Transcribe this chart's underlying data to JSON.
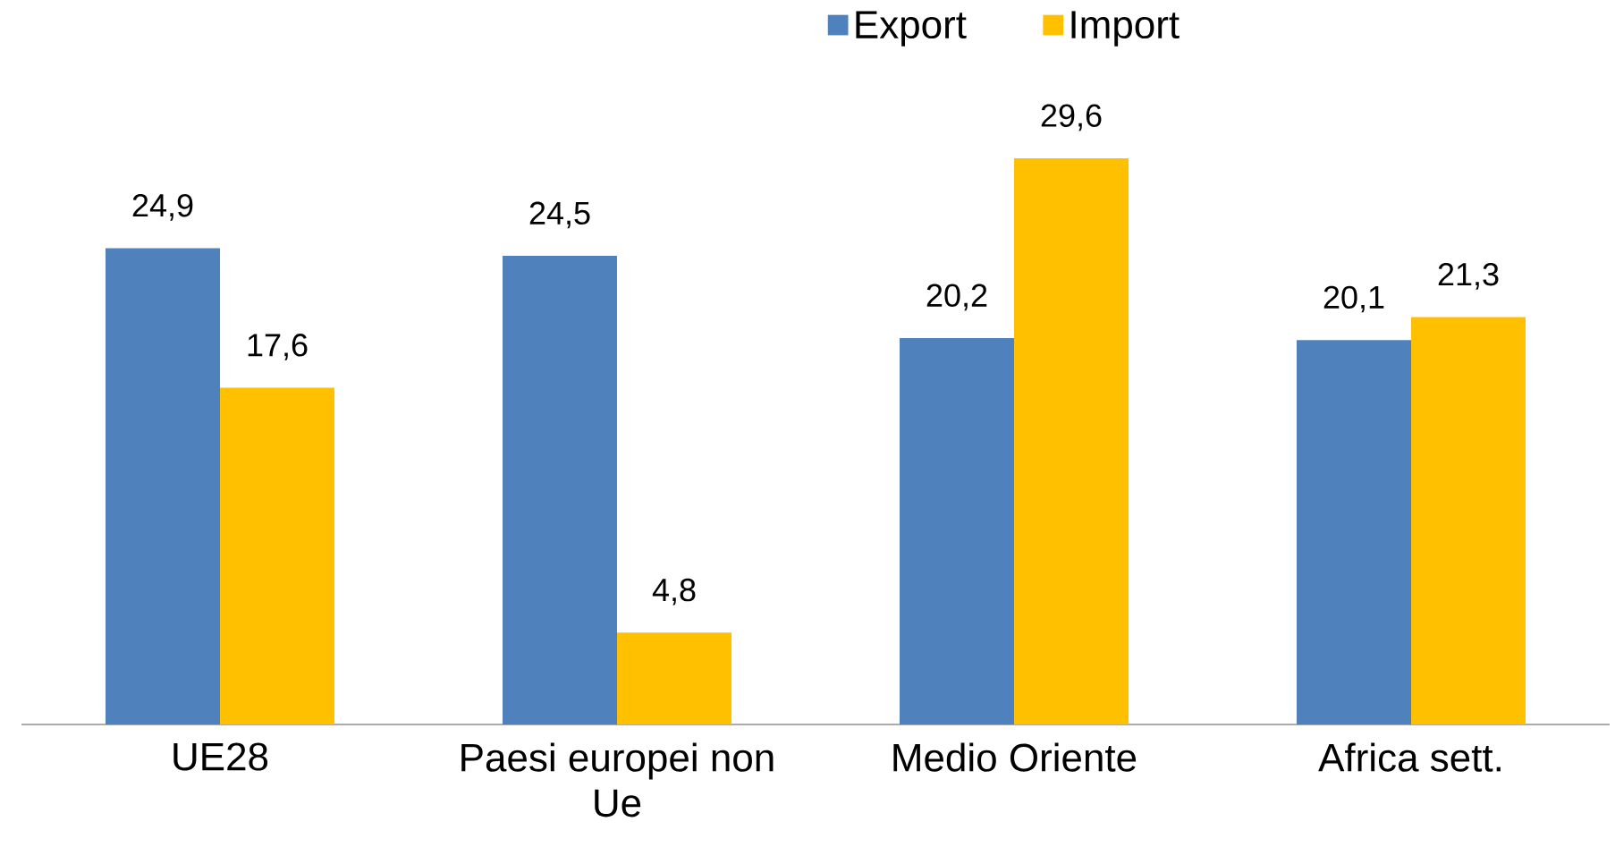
{
  "chart_data": {
    "type": "bar",
    "categories": [
      "UE28",
      "Paesi europei non Ue",
      "Medio Oriente",
      "Africa sett."
    ],
    "series": [
      {
        "name": "Export",
        "color": "#4f81bd",
        "values": [
          24.9,
          24.5,
          20.2,
          20.1
        ],
        "value_labels": [
          "24,9",
          "24,5",
          "20,2",
          "20,1"
        ]
      },
      {
        "name": "Import",
        "color": "#ffc000",
        "values": [
          17.6,
          4.8,
          29.6,
          21.3
        ],
        "value_labels": [
          "17,6",
          "4,8",
          "29,6",
          "21,3"
        ]
      }
    ],
    "legend": "top",
    "grid": false
  }
}
